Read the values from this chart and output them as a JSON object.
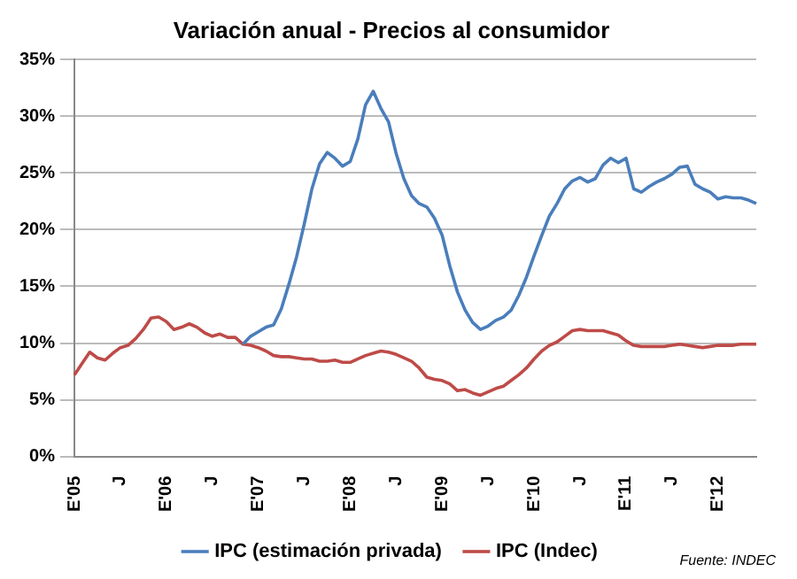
{
  "chart_data": {
    "type": "line",
    "title": "Variación anual - Precios al consumidor",
    "categories": [
      "E'05",
      null,
      null,
      null,
      null,
      null,
      "J",
      null,
      null,
      null,
      null,
      null,
      "E'06",
      null,
      null,
      null,
      null,
      null,
      "J",
      null,
      null,
      null,
      null,
      null,
      "E'07",
      null,
      null,
      null,
      null,
      null,
      "J",
      null,
      null,
      null,
      null,
      null,
      "E'08",
      null,
      null,
      null,
      null,
      null,
      "J",
      null,
      null,
      null,
      null,
      null,
      "E'09",
      null,
      null,
      null,
      null,
      null,
      "J",
      null,
      null,
      null,
      null,
      null,
      "E'10",
      null,
      null,
      null,
      null,
      null,
      "J",
      null,
      null,
      null,
      null,
      null,
      "E'11",
      null,
      null,
      null,
      null,
      null,
      "J",
      null,
      null,
      null,
      null,
      null,
      "E'12",
      null,
      null,
      null,
      null,
      null
    ],
    "series": [
      {
        "name": "IPC (estimación privada)",
        "color": "#4a7ebb",
        "values": [
          null,
          null,
          null,
          null,
          null,
          null,
          null,
          null,
          null,
          null,
          null,
          null,
          null,
          null,
          null,
          null,
          null,
          null,
          null,
          null,
          null,
          null,
          9.9,
          10.6,
          11.0,
          11.4,
          11.6,
          13.0,
          15.2,
          17.6,
          20.5,
          23.6,
          25.8,
          26.8,
          26.3,
          25.6,
          26.0,
          28.0,
          31.0,
          32.2,
          30.7,
          29.5,
          26.7,
          24.5,
          23.0,
          22.3,
          22.0,
          21.0,
          19.5,
          16.8,
          14.5,
          12.9,
          11.8,
          11.2,
          11.5,
          12.0,
          12.3,
          12.9,
          14.2,
          15.8,
          17.7,
          19.5,
          21.2,
          22.3,
          23.6,
          24.3,
          24.6,
          24.2,
          24.5,
          25.7,
          26.3,
          25.9,
          26.3,
          23.6,
          23.3,
          23.8,
          24.2,
          24.5,
          24.9,
          25.5,
          25.6,
          24.0,
          23.6,
          23.3,
          22.7,
          22.9,
          22.8,
          22.8,
          22.6,
          22.3
        ]
      },
      {
        "name": "IPC (Indec)",
        "color": "#be4b48",
        "values": [
          7.2,
          8.2,
          9.2,
          8.7,
          8.5,
          9.1,
          9.6,
          9.8,
          10.4,
          11.2,
          12.2,
          12.3,
          11.9,
          11.2,
          11.4,
          11.7,
          11.4,
          10.9,
          10.6,
          10.8,
          10.5,
          10.5,
          9.9,
          9.8,
          9.6,
          9.3,
          8.9,
          8.8,
          8.8,
          8.7,
          8.6,
          8.6,
          8.4,
          8.4,
          8.5,
          8.3,
          8.3,
          8.6,
          8.9,
          9.1,
          9.3,
          9.2,
          9.0,
          8.7,
          8.4,
          7.8,
          7.0,
          6.8,
          6.7,
          6.4,
          5.8,
          5.9,
          5.6,
          5.4,
          5.7,
          6.0,
          6.2,
          6.7,
          7.2,
          7.8,
          8.6,
          9.3,
          9.8,
          10.1,
          10.6,
          11.1,
          11.2,
          11.1,
          11.1,
          11.1,
          10.9,
          10.7,
          10.2,
          9.8,
          9.7,
          9.7,
          9.7,
          9.7,
          9.8,
          9.9,
          9.8,
          9.7,
          9.6,
          9.7,
          9.8,
          9.8,
          9.8,
          9.9,
          9.9,
          9.9
        ]
      }
    ],
    "ylim": [
      0,
      35
    ],
    "yticks": [
      {
        "value": 0,
        "label": "0%"
      },
      {
        "value": 5,
        "label": "5%"
      },
      {
        "value": 10,
        "label": "10%"
      },
      {
        "value": 15,
        "label": "15%"
      },
      {
        "value": 20,
        "label": "20%"
      },
      {
        "value": 25,
        "label": "25%"
      },
      {
        "value": 30,
        "label": "30%"
      },
      {
        "value": 35,
        "label": "35%"
      }
    ],
    "grid": "y",
    "legend": "bottom",
    "marker": "none",
    "line_style": "solid",
    "annotations": [
      "Fuente: INDEC"
    ]
  }
}
